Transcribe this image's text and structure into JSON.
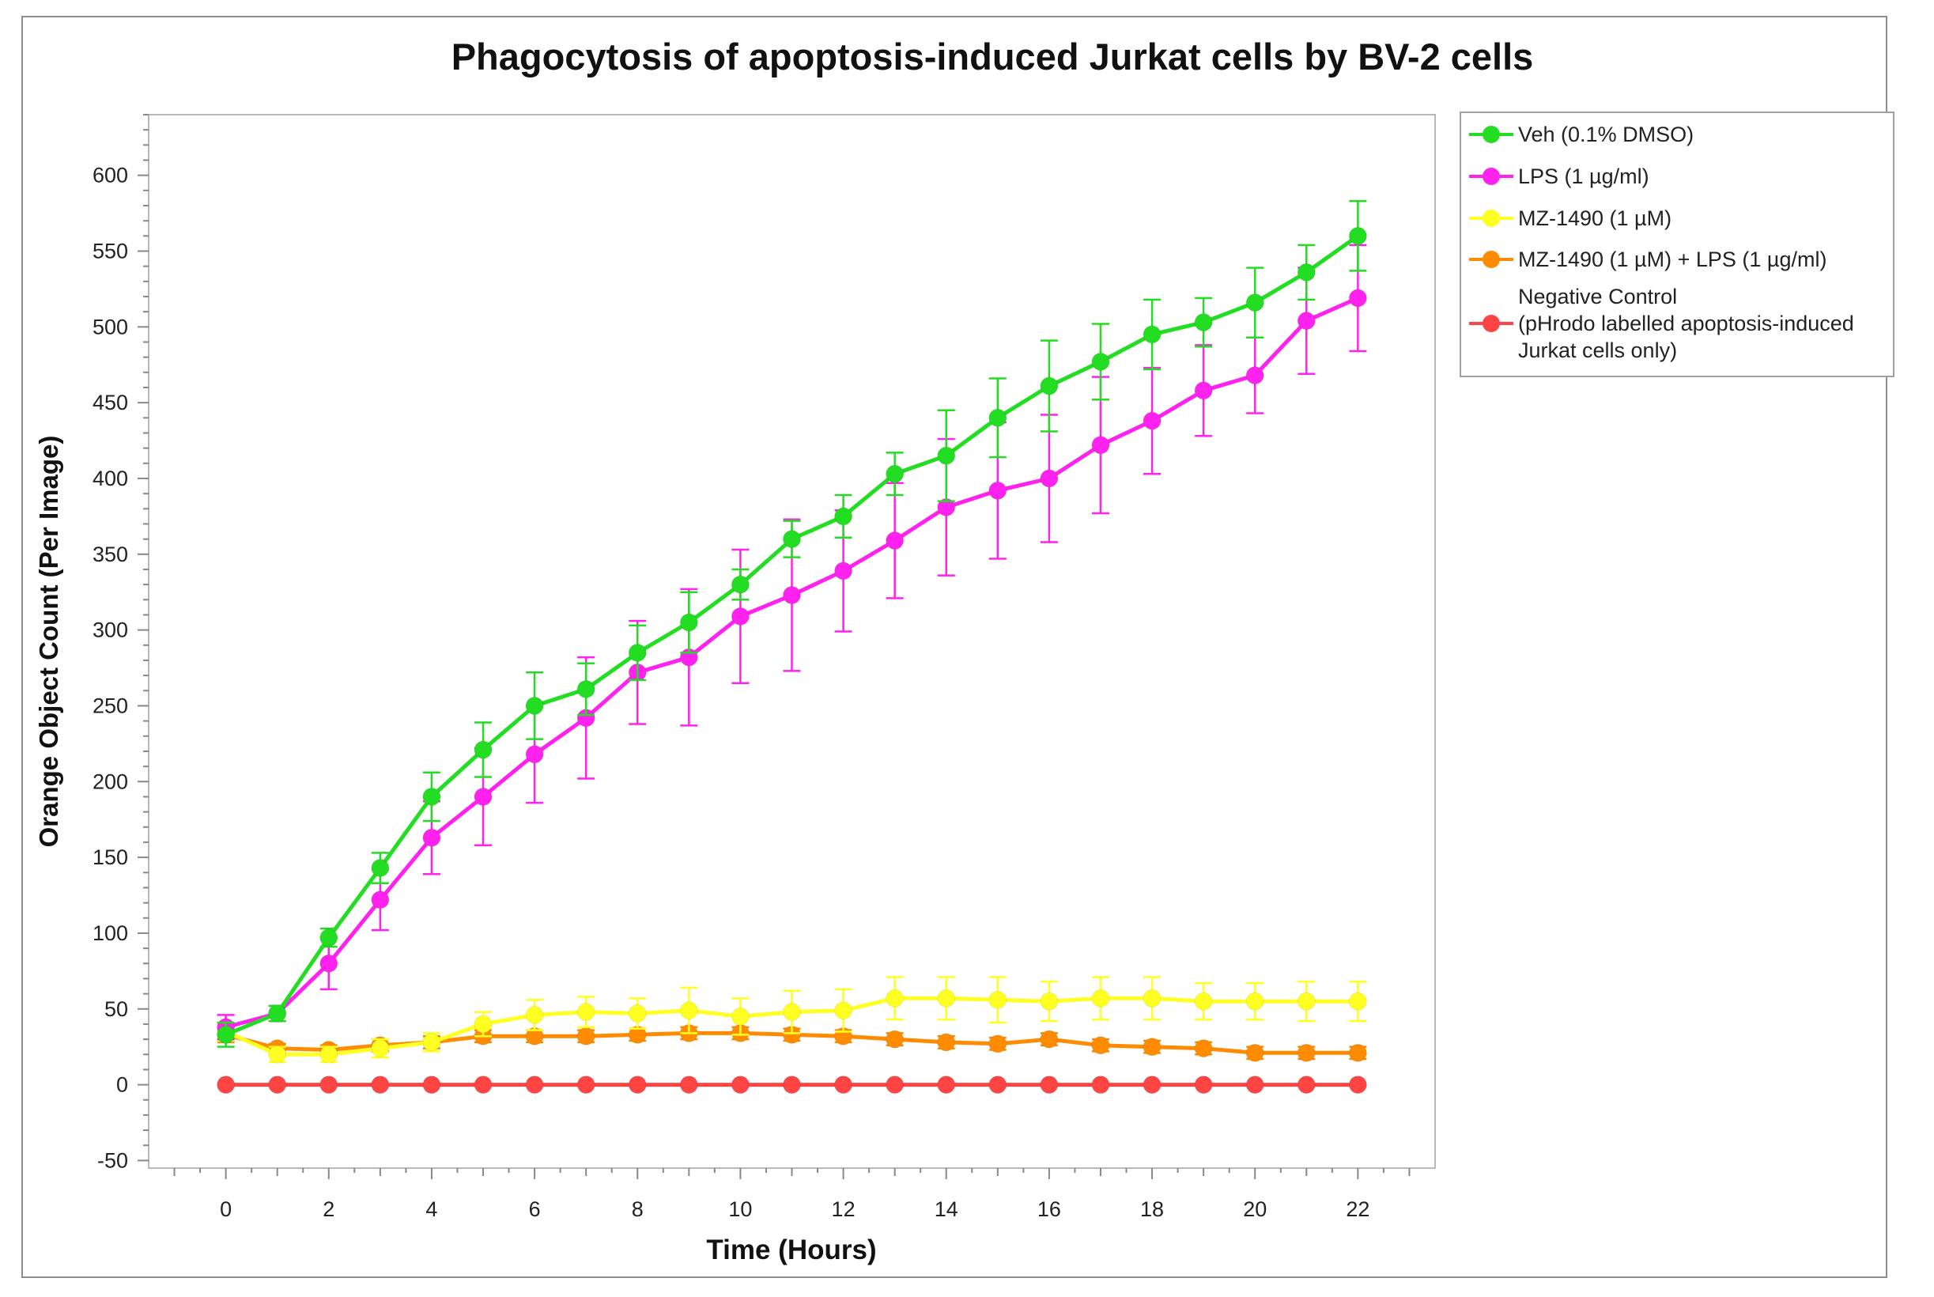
{
  "chart_data": {
    "type": "line",
    "title": "Phagocytosis of apoptosis-induced Jurkat cells by BV-2 cells",
    "xlabel": "Time (Hours)",
    "ylabel": "Orange Object Count (Per Image)",
    "xlim": [
      -1.5,
      23.5
    ],
    "ylim": [
      -55,
      640
    ],
    "x_ticks": [
      0,
      2,
      4,
      6,
      8,
      10,
      12,
      14,
      16,
      18,
      20,
      22
    ],
    "y_ticks": [
      -50,
      0,
      50,
      100,
      150,
      200,
      250,
      300,
      350,
      400,
      450,
      500,
      550,
      600
    ],
    "grid": false,
    "legend_position": "right",
    "x": [
      0,
      1,
      2,
      3,
      4,
      5,
      6,
      7,
      8,
      9,
      10,
      11,
      12,
      13,
      14,
      15,
      16,
      17,
      18,
      19,
      20,
      21,
      22
    ],
    "series": [
      {
        "name": "Veh (0.1% DMSO)",
        "color": "#22dd22",
        "values": [
          33,
          47,
          97,
          143,
          190,
          221,
          250,
          261,
          285,
          305,
          330,
          360,
          375,
          403,
          415,
          440,
          461,
          477,
          495,
          503,
          516,
          536,
          560
        ],
        "errors": [
          8,
          5,
          6,
          10,
          16,
          18,
          22,
          17,
          18,
          20,
          10,
          12,
          14,
          14,
          30,
          26,
          30,
          25,
          23,
          16,
          23,
          18,
          23
        ]
      },
      {
        "name": "LPS (1 µg/ml)",
        "color": "#ff22ee",
        "values": [
          38,
          47,
          80,
          122,
          163,
          190,
          218,
          242,
          272,
          282,
          309,
          323,
          339,
          359,
          381,
          392,
          400,
          422,
          438,
          458,
          468,
          504,
          519
        ],
        "errors": [
          8,
          5,
          17,
          20,
          24,
          32,
          32,
          40,
          34,
          45,
          44,
          50,
          40,
          38,
          45,
          45,
          42,
          45,
          35,
          30,
          25,
          35,
          35
        ]
      },
      {
        "name": "MZ-1490 (1 µM)",
        "color": "#ffff22",
        "values": [
          35,
          20,
          20,
          24,
          28,
          40,
          46,
          48,
          47,
          49,
          45,
          48,
          49,
          57,
          57,
          56,
          55,
          57,
          57,
          55,
          55,
          55,
          55
        ],
        "errors": [
          6,
          5,
          5,
          6,
          6,
          8,
          10,
          10,
          10,
          15,
          12,
          14,
          14,
          14,
          14,
          15,
          13,
          14,
          14,
          12,
          12,
          13,
          13
        ]
      },
      {
        "name": "MZ-1490 (1 µM) + LPS (1 µg/ml)",
        "color": "#ff8c00",
        "values": [
          33,
          24,
          23,
          26,
          28,
          32,
          32,
          32,
          33,
          34,
          34,
          33,
          32,
          30,
          28,
          27,
          30,
          26,
          25,
          24,
          21,
          21,
          21
        ],
        "errors": [
          5,
          3,
          3,
          4,
          4,
          4,
          4,
          4,
          4,
          4,
          4,
          4,
          4,
          4,
          4,
          4,
          4,
          4,
          4,
          4,
          4,
          4,
          4
        ]
      },
      {
        "name": "Negative Control (pHrodo labelled apoptosis-induced Jurkat cells only)",
        "legend_lines": [
          "Negative Control",
          "(pHrodo labelled apoptosis-induced",
          "Jurkat cells only)"
        ],
        "color": "#ff4444",
        "values": [
          0,
          0,
          0,
          0,
          0,
          0,
          0,
          0,
          0,
          0,
          0,
          0,
          0,
          0,
          0,
          0,
          0,
          0,
          0,
          0,
          0,
          0,
          0
        ],
        "errors": [
          0,
          0,
          0,
          0,
          0,
          0,
          0,
          0,
          0,
          0,
          0,
          0,
          0,
          0,
          0,
          0,
          0,
          0,
          0,
          0,
          0,
          0,
          0
        ]
      }
    ]
  }
}
